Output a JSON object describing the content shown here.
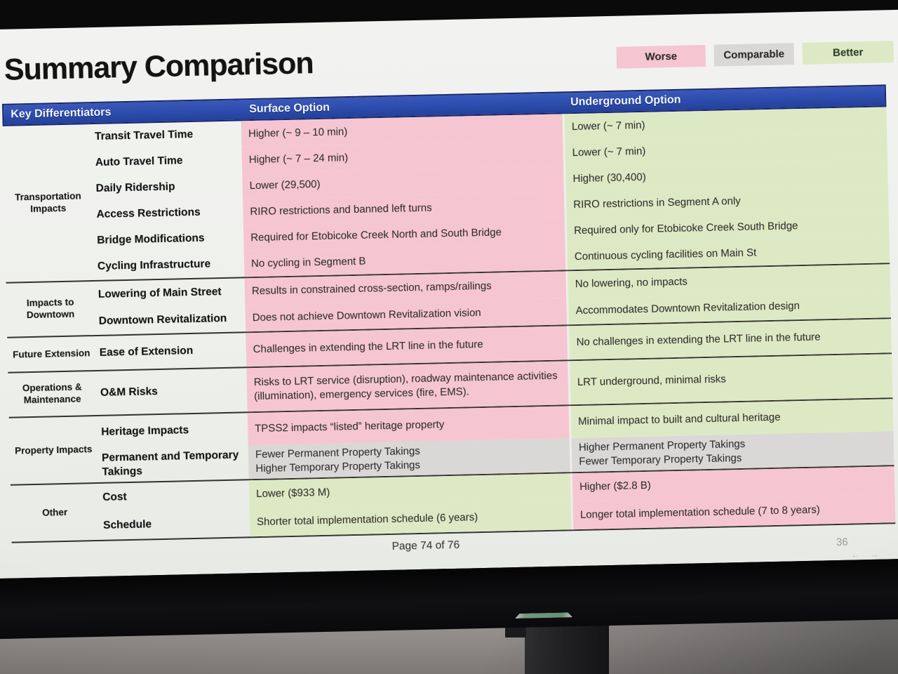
{
  "slide": {
    "title": "Summary Comparison",
    "legend": [
      {
        "label": "Worse",
        "status": "worse"
      },
      {
        "label": "Comparable",
        "status": "comparable"
      },
      {
        "label": "Better",
        "status": "better"
      }
    ],
    "header": {
      "col_key": "Key Differentiators",
      "col_surface": "Surface Option",
      "col_underground": "Underground Option"
    },
    "groups": [
      {
        "name": "Transportation Impacts",
        "rows": [
          {
            "criterion": "Transit Travel Time",
            "surface": "Higher (~ 9 – 10 min)",
            "surface_status": "worse",
            "underground": "Lower (~ 7 min)",
            "underground_status": "better"
          },
          {
            "criterion": "Auto Travel Time",
            "surface": "Higher (~ 7 – 24 min)",
            "surface_status": "worse",
            "underground": "Lower (~ 7 min)",
            "underground_status": "better"
          },
          {
            "criterion": "Daily Ridership",
            "surface": "Lower (29,500)",
            "surface_status": "worse",
            "underground": "Higher (30,400)",
            "underground_status": "better"
          },
          {
            "criterion": "Access Restrictions",
            "surface": "RIRO restrictions and banned left turns",
            "surface_status": "worse",
            "underground": "RIRO restrictions in Segment A only",
            "underground_status": "better"
          },
          {
            "criterion": "Bridge Modifications",
            "surface": "Required for Etobicoke Creek North and South Bridge",
            "surface_status": "worse",
            "underground": "Required only for Etobicoke Creek South Bridge",
            "underground_status": "better"
          },
          {
            "criterion": "Cycling Infrastructure",
            "surface": "No cycling in Segment B",
            "surface_status": "worse",
            "underground": "Continuous cycling facilities on Main St",
            "underground_status": "better"
          }
        ]
      },
      {
        "name": "Impacts to Downtown",
        "rows": [
          {
            "criterion": "Lowering of Main Street",
            "surface": "Results in constrained cross-section, ramps/railings",
            "surface_status": "worse",
            "underground": "No lowering, no impacts",
            "underground_status": "better"
          },
          {
            "criterion": "Downtown Revitalization",
            "surface": "Does not achieve Downtown Revitalization vision",
            "surface_status": "worse",
            "underground": "Accommodates Downtown Revitalization design",
            "underground_status": "better"
          }
        ]
      },
      {
        "name": "Future Extension",
        "rows": [
          {
            "criterion": "Ease of Extension",
            "surface": "Challenges in extending the LRT line in the future",
            "surface_status": "worse",
            "underground": "No challenges in extending the LRT line in the future",
            "underground_status": "better"
          }
        ]
      },
      {
        "name": "Operations & Maintenance",
        "rows": [
          {
            "criterion": "O&M Risks",
            "surface": "Risks to LRT service (disruption), roadway maintenance activities (illumination), emergency services (fire, EMS).",
            "surface_status": "worse",
            "underground": "LRT underground, minimal risks",
            "underground_status": "better"
          }
        ]
      },
      {
        "name": "Property Impacts",
        "rows": [
          {
            "criterion": "Heritage Impacts",
            "surface": "TPSS2 impacts “listed” heritage property",
            "surface_status": "worse",
            "underground": "Minimal impact to built and cultural heritage",
            "underground_status": "better"
          },
          {
            "criterion": "Permanent and Temporary Takings",
            "surface": "Fewer Permanent Property Takings\nHigher Temporary Property Takings",
            "surface_status": "comparable",
            "underground": "Higher Permanent Property Takings\nFewer Temporary Property Takings",
            "underground_status": "comparable"
          }
        ]
      },
      {
        "name": "Other",
        "rows": [
          {
            "criterion": "Cost",
            "surface": "Lower ($933 M)",
            "surface_status": "better",
            "underground": "Higher ($2.8 B)",
            "underground_status": "worse"
          },
          {
            "criterion": "Schedule",
            "surface": "Shorter total implementation schedule (6 years)",
            "surface_status": "better",
            "underground": "Longer total implementation schedule (7 to 8 years)",
            "underground_status": "worse"
          }
        ]
      }
    ],
    "footer": {
      "page_text": "Page 74 of 76",
      "slide_number": "36",
      "nav_arrows": "← →"
    }
  },
  "colors": {
    "worse": "#f5c6d2",
    "comparable": "#d9d8d6",
    "better": "#dde9c4",
    "header_blue": "#2e4fb0",
    "header_border": "#18266b"
  }
}
